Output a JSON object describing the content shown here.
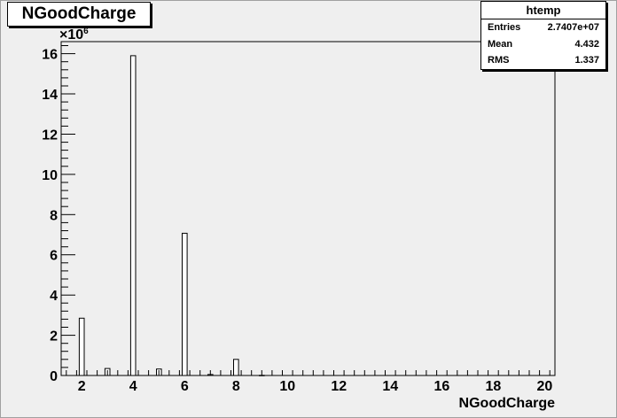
{
  "chart_data": {
    "type": "bar",
    "title": "NGoodCharge",
    "xlabel": "NGoodCharge",
    "ylabel": "",
    "y_multiplier_label": "×10",
    "y_multiplier_exponent": "6",
    "xlim": [
      1.2,
      20.4
    ],
    "ylim": [
      0,
      16.6
    ],
    "xticks": [
      "2",
      "4",
      "6",
      "8",
      "10",
      "12",
      "14",
      "16",
      "18",
      "20"
    ],
    "yticks": [
      "0",
      "2",
      "4",
      "6",
      "8",
      "10",
      "12",
      "14",
      "16"
    ],
    "grid": false,
    "bin_width": 0.192,
    "bins": [
      {
        "x": 2,
        "value": 2.85
      },
      {
        "x": 3,
        "value": 0.35
      },
      {
        "x": 4,
        "value": 15.9
      },
      {
        "x": 5,
        "value": 0.32
      },
      {
        "x": 6,
        "value": 7.07
      },
      {
        "x": 7,
        "value": 0.05
      },
      {
        "x": 8,
        "value": 0.8
      },
      {
        "x": 9,
        "value": 0.01
      }
    ]
  },
  "stats": {
    "name": "htemp",
    "rows": [
      {
        "label": "Entries",
        "value": "2.7407e+07"
      },
      {
        "label": "Mean",
        "value": "4.432"
      },
      {
        "label": "RMS",
        "value": "1.337"
      }
    ]
  }
}
